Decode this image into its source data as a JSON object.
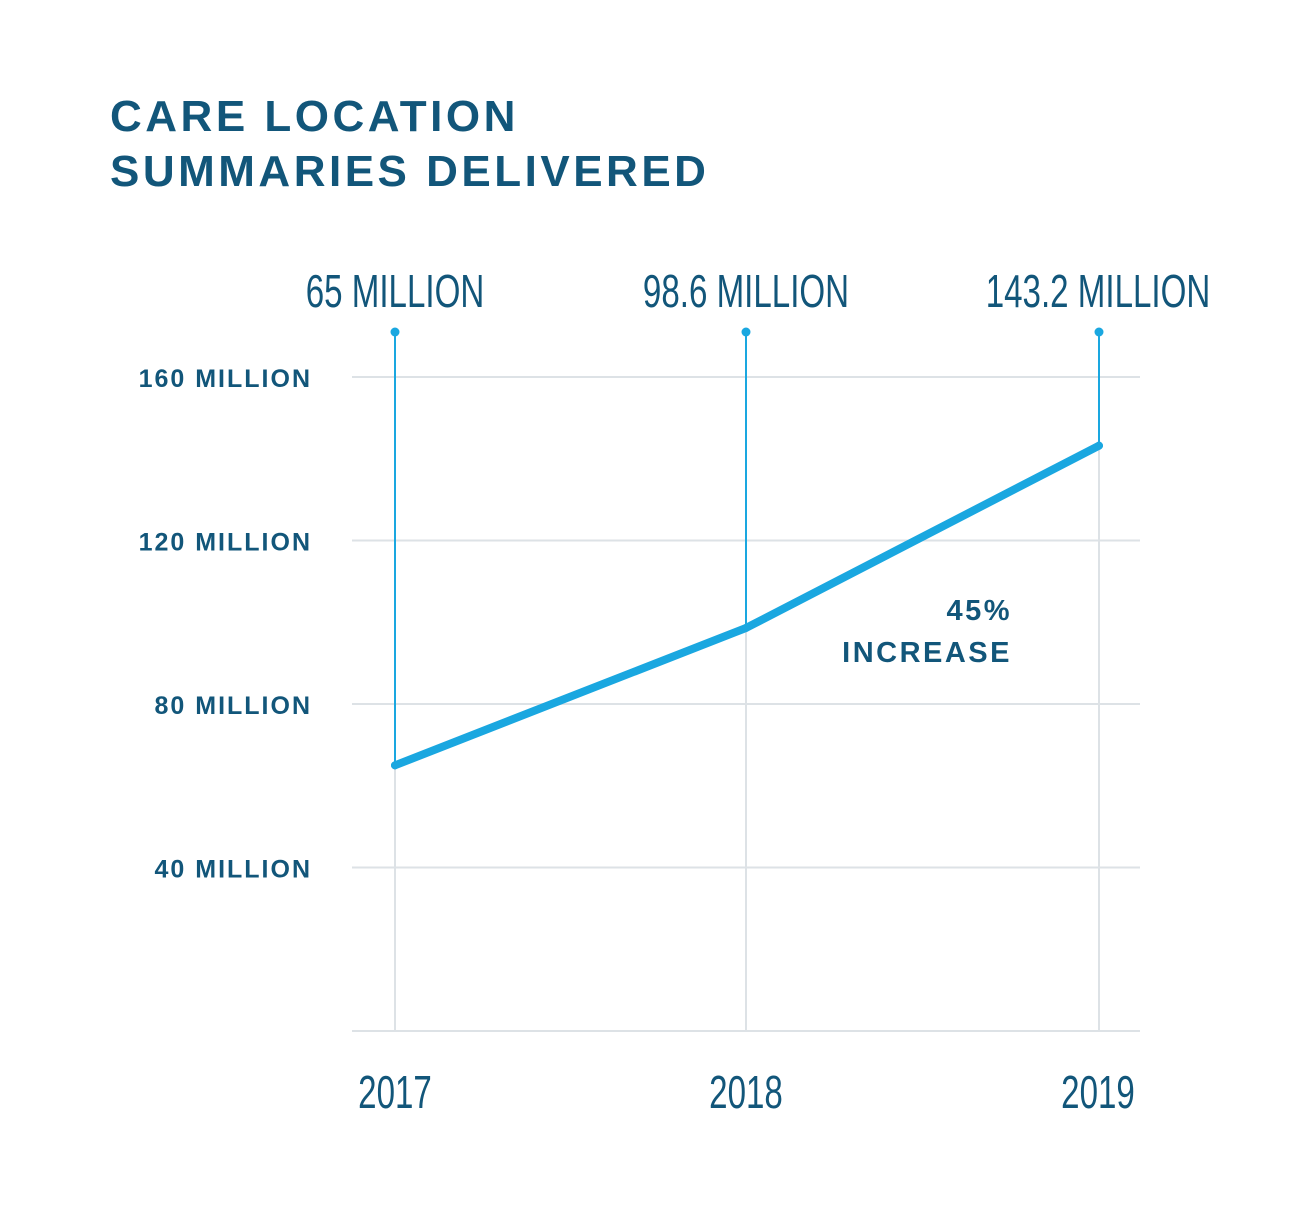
{
  "chart_data": {
    "type": "line",
    "title": [
      "CARE LOCATION",
      "SUMMARIES DELIVERED"
    ],
    "categories": [
      "2017",
      "2018",
      "2019"
    ],
    "values": [
      65,
      98.6,
      143.2
    ],
    "unit": "million",
    "data_labels": [
      "65 MILLION",
      "98.6 MILLION",
      "143.2 MILLION"
    ],
    "y_ticks": [
      40,
      80,
      120,
      160
    ],
    "y_tick_labels": [
      "40 MILLION",
      "80 MILLION",
      "120 MILLION",
      "160 MILLION"
    ],
    "ylim": [
      0,
      160
    ],
    "grid": true,
    "annotation": [
      "45%",
      "INCREASE"
    ],
    "colors": {
      "line": "#1aa7e0",
      "text": "#12567a",
      "grid": "#dde2e6"
    }
  }
}
